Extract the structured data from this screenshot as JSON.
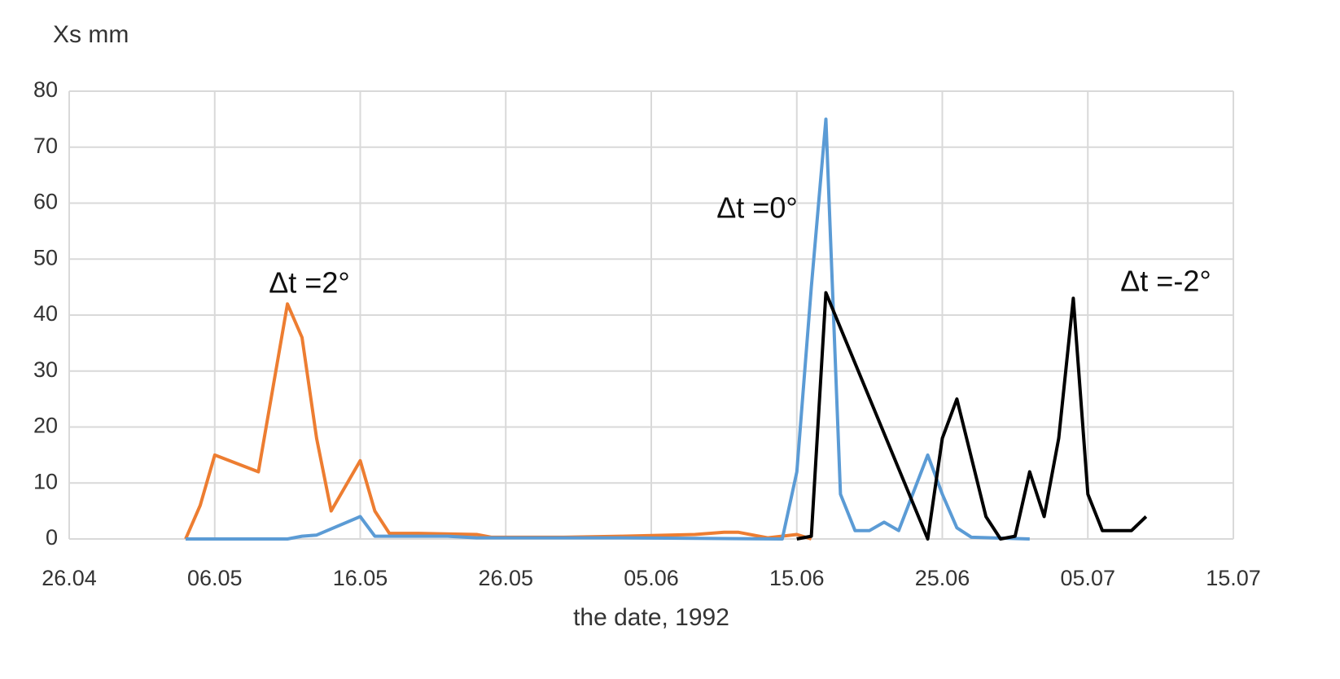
{
  "chart_data": {
    "type": "line",
    "y_label": "Xs mm",
    "x_label": "the date, 1992",
    "xlim": [
      "26.04",
      "15.07"
    ],
    "xticks": [
      "26.04",
      "06.05",
      "16.05",
      "26.05",
      "05.06",
      "15.06",
      "25.06",
      "05.07",
      "15.07"
    ],
    "ylim": [
      0,
      80
    ],
    "yticks": [
      0,
      10,
      20,
      30,
      40,
      50,
      60,
      70,
      80
    ],
    "grid": true,
    "series": [
      {
        "name": "Δt =2°",
        "color": "#ed7d31",
        "x": [
          "04.05",
          "05.05",
          "06.05",
          "09.05",
          "11.05",
          "12.05",
          "13.05",
          "14.05",
          "16.05",
          "17.05",
          "18.05",
          "20.05",
          "24.05",
          "25.05",
          "30.05",
          "03.06",
          "08.06",
          "10.06",
          "11.06",
          "13.06",
          "15.06",
          "16.06"
        ],
        "values": [
          0,
          6,
          15,
          12,
          42,
          36,
          18,
          5,
          14,
          5,
          1,
          1,
          0.8,
          0.3,
          0.3,
          0.5,
          0.8,
          1.2,
          1.2,
          0.2,
          0.8,
          0
        ]
      },
      {
        "name": "Δt =0°",
        "color": "#5b9bd5",
        "x": [
          "04.05",
          "11.05",
          "12.05",
          "13.05",
          "16.05",
          "17.05",
          "22.05",
          "24.05",
          "03.06",
          "14.06",
          "15.06",
          "16.06",
          "17.06",
          "18.06",
          "19.06",
          "20.06",
          "21.06",
          "22.06",
          "24.06",
          "25.06",
          "26.06",
          "27.06",
          "01.07"
        ],
        "values": [
          0,
          0,
          0.5,
          0.7,
          4,
          0.5,
          0.5,
          0.2,
          0.2,
          0,
          12,
          45,
          75,
          8,
          1.5,
          1.5,
          3,
          1.5,
          15,
          8,
          2,
          0.3,
          0
        ]
      },
      {
        "name": "Δt =-2°",
        "color": "#000000",
        "x": [
          "15.06",
          "16.06",
          "17.06",
          "24.06",
          "25.06",
          "26.06",
          "28.06",
          "29.06",
          "30.06",
          "01.07",
          "02.07",
          "03.07",
          "04.07",
          "05.07",
          "06.07",
          "08.07",
          "09.07"
        ],
        "values": [
          0,
          0.5,
          44,
          0,
          18,
          25,
          4,
          0,
          0.5,
          12,
          4,
          18,
          43,
          8,
          1.5,
          1.5,
          4
        ]
      }
    ]
  }
}
